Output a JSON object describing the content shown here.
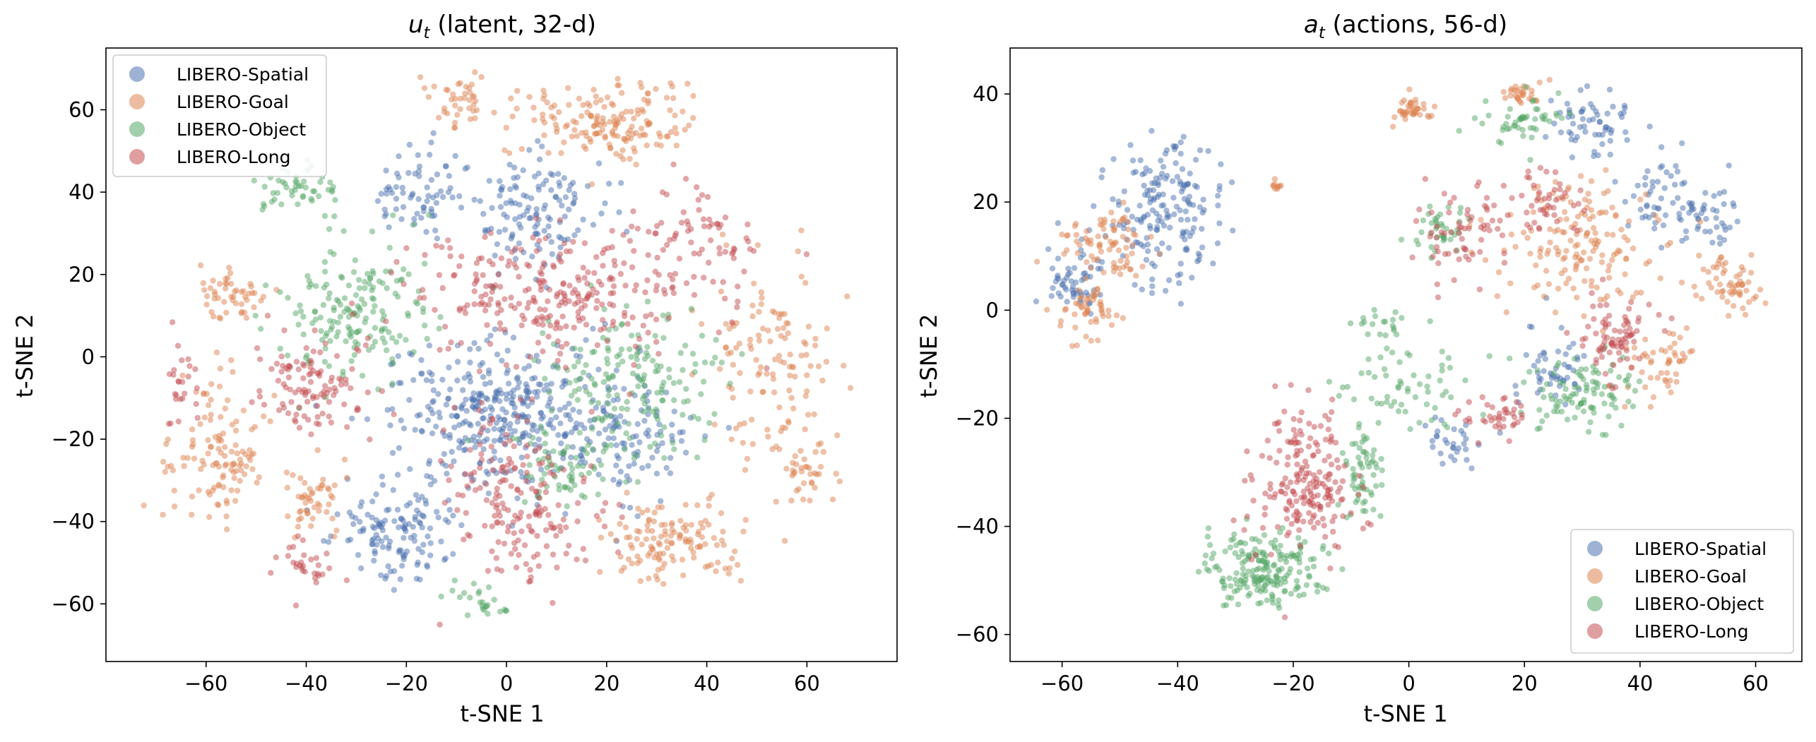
{
  "chart_data": [
    {
      "type": "scatter",
      "title": {
        "symbol": "u",
        "sub": "t",
        "rest": " (latent, 32-d)"
      },
      "xlabel": "t-SNE 1",
      "ylabel": "t-SNE 2",
      "xlim": [
        -80,
        78
      ],
      "ylim": [
        -74,
        75
      ],
      "xticks": [
        "−60",
        "−40",
        "−20",
        "0",
        "20",
        "40",
        "60"
      ],
      "xtick_values": [
        -60,
        -40,
        -20,
        0,
        20,
        40,
        60
      ],
      "yticks": [
        "−60",
        "−40",
        "−20",
        "0",
        "20",
        "40",
        "60"
      ],
      "ytick_values": [
        -60,
        -40,
        -20,
        0,
        20,
        40,
        60
      ],
      "grid": false,
      "legend_position": "top-left",
      "series": [
        {
          "name": "LIBERO-Spatial",
          "color": "#4c72b0",
          "clusters": [
            [
              0,
              -15,
              20,
              16,
              320
            ],
            [
              -22,
              -42,
              9,
              10,
              130
            ],
            [
              -17,
              40,
              9,
              9,
              70
            ],
            [
              5,
              35,
              12,
              12,
              130
            ],
            [
              25,
              -20,
              12,
              12,
              90
            ],
            [
              -2,
              -12,
              9,
              9,
              60
            ]
          ]
        },
        {
          "name": "LIBERO-Goal",
          "color": "#dd8452",
          "clusters": [
            [
              20,
              57,
              14,
              8,
              170
            ],
            [
              -58,
              -25,
              8,
              16,
              120
            ],
            [
              33,
              -45,
              12,
              8,
              130
            ],
            [
              53,
              0,
              10,
              18,
              120
            ],
            [
              -38,
              -35,
              6,
              8,
              50
            ],
            [
              -55,
              15,
              6,
              8,
              50
            ],
            [
              60,
              -28,
              6,
              8,
              40
            ],
            [
              -10,
              62,
              6,
              4,
              40
            ]
          ]
        },
        {
          "name": "LIBERO-Object",
          "color": "#55a868",
          "clusters": [
            [
              -30,
              10,
              12,
              14,
              170
            ],
            [
              25,
              -5,
              16,
              15,
              180
            ],
            [
              10,
              -28,
              7,
              7,
              60
            ],
            [
              -42,
              40,
              7,
              7,
              50
            ],
            [
              -5,
              -60,
              6,
              4,
              25
            ]
          ]
        },
        {
          "name": "LIBERO-Long",
          "color": "#c44e52",
          "clusters": [
            [
              10,
              15,
              22,
              13,
              260
            ],
            [
              3,
              -35,
              12,
              18,
              180
            ],
            [
              -38,
              -5,
              9,
              11,
              110
            ],
            [
              38,
              25,
              10,
              12,
              80
            ],
            [
              -65,
              -5,
              4,
              10,
              25
            ],
            [
              -40,
              -52,
              6,
              6,
              30
            ]
          ]
        }
      ]
    },
    {
      "type": "scatter",
      "title": {
        "symbol": "a",
        "sub": "t",
        "rest": " (actions, 56-d)"
      },
      "xlabel": "t-SNE 1",
      "ylabel": "t-SNE 2",
      "xlim": [
        -69,
        68
      ],
      "ylim": [
        -65,
        48.5
      ],
      "xticks": [
        "−60",
        "−40",
        "−20",
        "0",
        "20",
        "40",
        "60"
      ],
      "xtick_values": [
        -60,
        -40,
        -20,
        0,
        20,
        40,
        60
      ],
      "yticks": [
        "−60",
        "−40",
        "−20",
        "0",
        "20",
        "40"
      ],
      "ytick_values": [
        -60,
        -40,
        -20,
        0,
        20,
        40
      ],
      "grid": false,
      "legend_position": "bottom-right",
      "series": [
        {
          "name": "LIBERO-Spatial",
          "color": "#4c72b0",
          "clusters": [
            [
              -42,
              18,
              8,
              12,
              180
            ],
            [
              -58,
              5,
              4,
              5,
              60
            ],
            [
              32,
              35,
              6,
              5,
              60
            ],
            [
              45,
              20,
              6,
              7,
              60
            ],
            [
              25,
              -10,
              5,
              6,
              50
            ],
            [
              8,
              -25,
              5,
              4,
              30
            ],
            [
              52,
              18,
              4,
              6,
              30
            ]
          ]
        },
        {
          "name": "LIBERO-Goal",
          "color": "#dd8452",
          "clusters": [
            [
              -52,
              12,
              6,
              6,
              80
            ],
            [
              -55,
              0,
              4,
              4,
              50
            ],
            [
              0,
              37,
              3,
              2,
              40
            ],
            [
              30,
              12,
              12,
              10,
              160
            ],
            [
              55,
              5,
              5,
              4,
              60
            ],
            [
              43,
              -10,
              5,
              6,
              50
            ],
            [
              -23,
              23,
              1,
              1,
              10
            ],
            [
              20,
              40,
              4,
              2,
              30
            ]
          ]
        },
        {
          "name": "LIBERO-Object",
          "color": "#55a868",
          "clusters": [
            [
              -25,
              -48,
              8,
              6,
              200
            ],
            [
              -8,
              -30,
              3,
              8,
              60
            ],
            [
              0,
              -15,
              10,
              8,
              60
            ],
            [
              30,
              -15,
              8,
              6,
              100
            ],
            [
              20,
              35,
              6,
              4,
              50
            ],
            [
              5,
              15,
              4,
              4,
              40
            ],
            [
              -5,
              -2,
              3,
              3,
              20
            ]
          ]
        },
        {
          "name": "LIBERO-Long",
          "color": "#c44e52",
          "clusters": [
            [
              -18,
              -32,
              7,
              11,
              200
            ],
            [
              35,
              -5,
              6,
              6,
              80
            ],
            [
              10,
              15,
              7,
              7,
              70
            ],
            [
              25,
              20,
              5,
              5,
              40
            ],
            [
              15,
              -20,
              5,
              3,
              40
            ]
          ]
        }
      ]
    }
  ]
}
